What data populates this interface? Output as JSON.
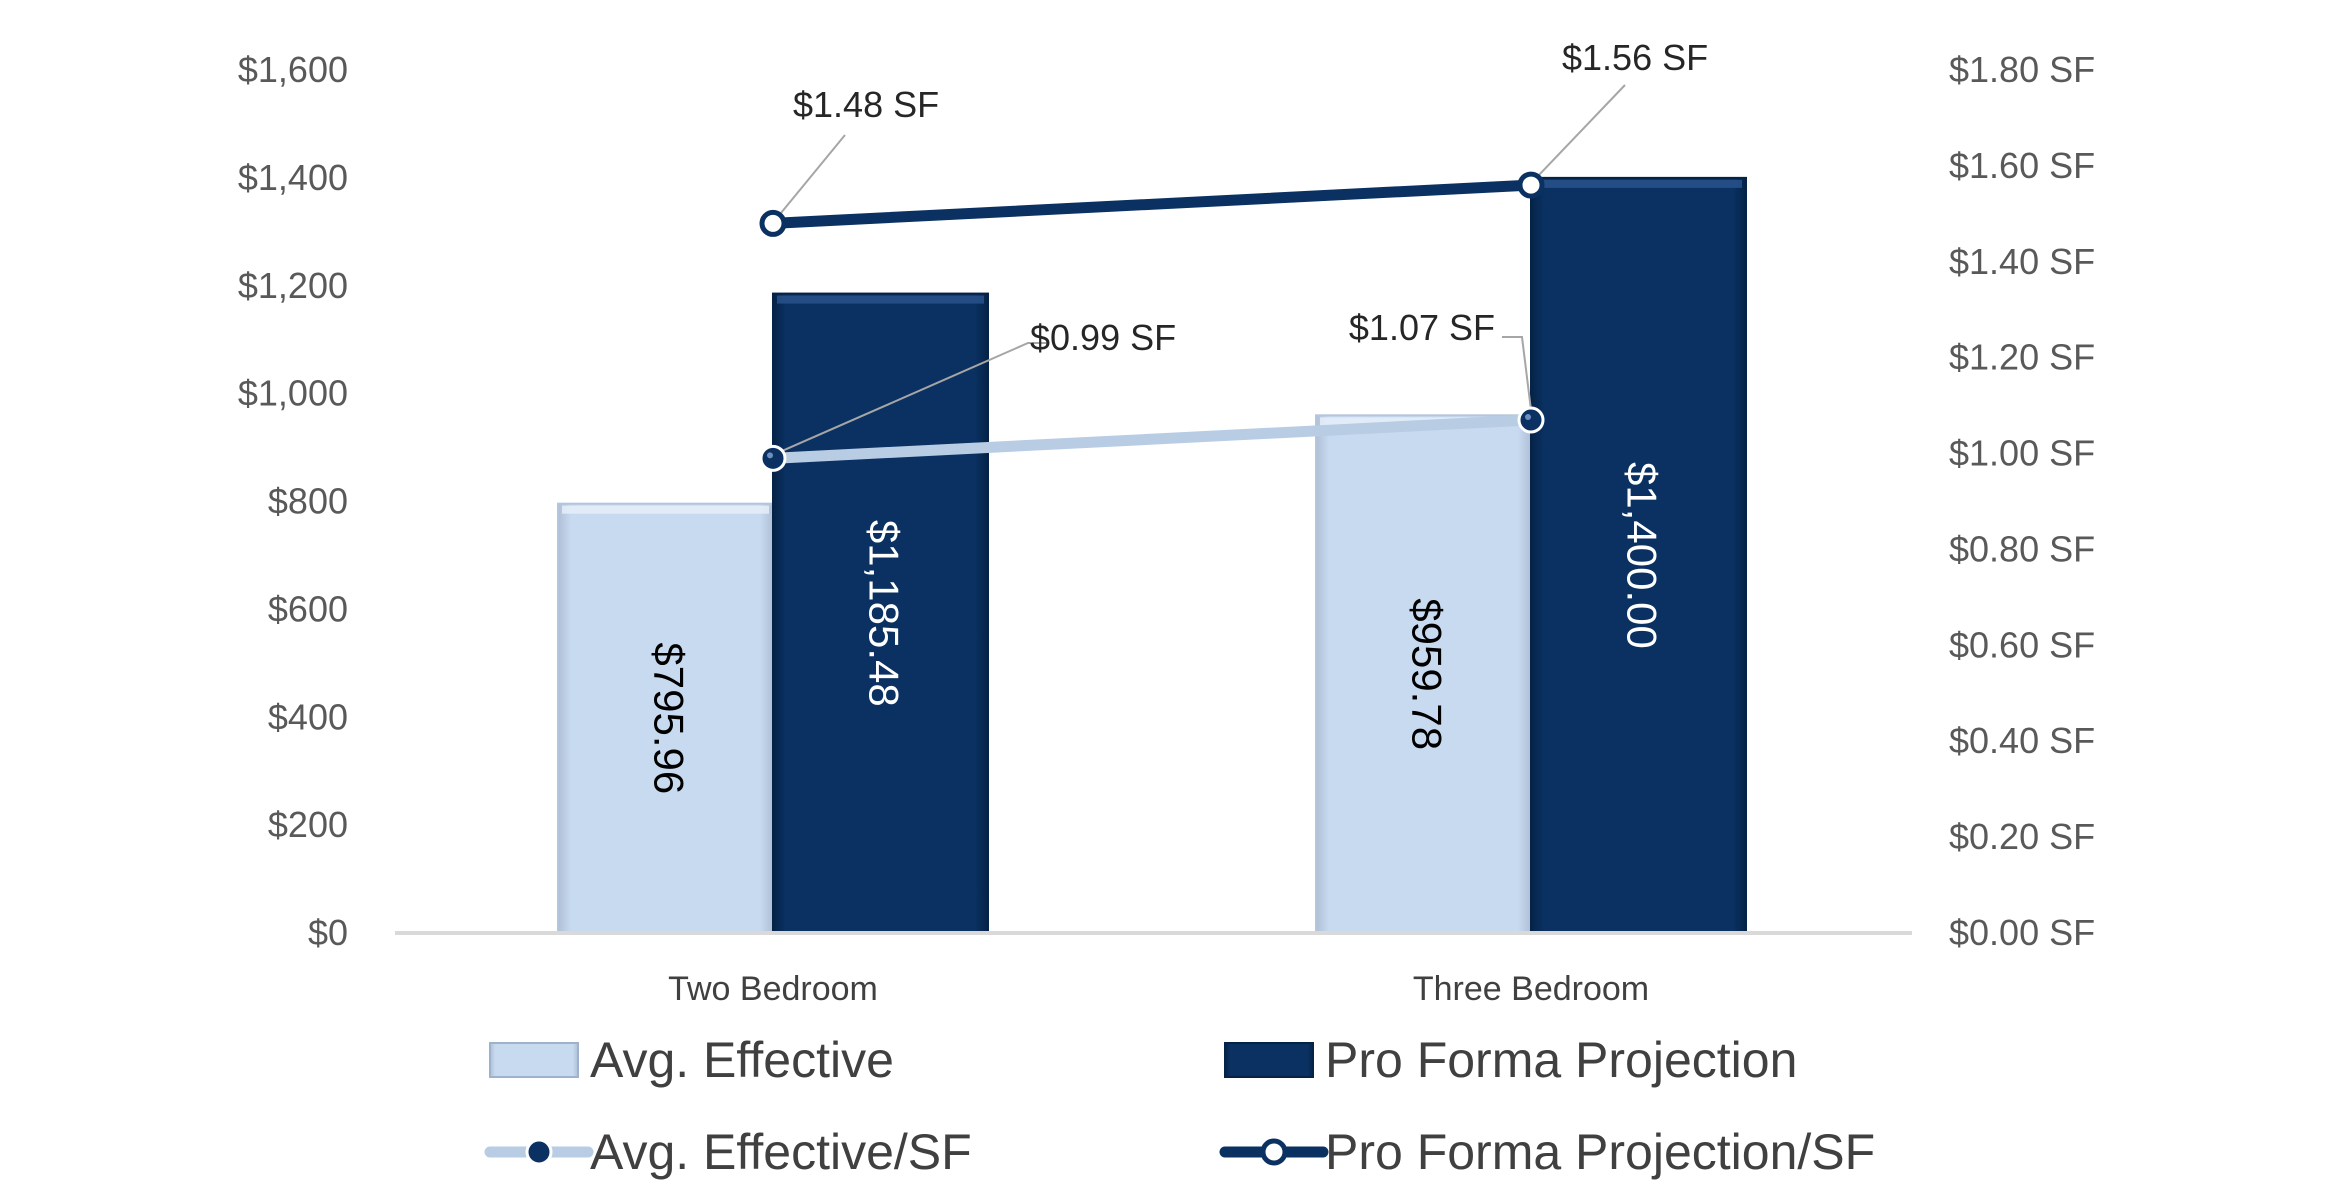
{
  "chart_data": {
    "type": "bar",
    "categories": [
      "Two Bedroom",
      "Three Bedroom"
    ],
    "series": [
      {
        "name": "Avg. Effective",
        "kind": "bar",
        "axis": "left",
        "color": "#c5d9f1",
        "values": [
          795.96,
          959.78
        ],
        "labels": [
          "$795.96",
          "$959.78"
        ]
      },
      {
        "name": "Pro Forma Projection",
        "kind": "bar",
        "axis": "left",
        "color": "#0a3162",
        "values": [
          1185.48,
          1400.0
        ],
        "labels": [
          "$1,185.48",
          "$1,400.00"
        ]
      },
      {
        "name": "Avg. Effective/SF",
        "kind": "line",
        "axis": "right",
        "color": "#b8cce4",
        "values": [
          0.99,
          1.07
        ],
        "labels": [
          "$0.99 SF",
          "$1.07 SF"
        ]
      },
      {
        "name": "Pro Forma Projection/SF",
        "kind": "line",
        "axis": "right",
        "color": "#0a3162",
        "values": [
          1.48,
          1.56
        ],
        "labels": [
          "$1.48 SF",
          "$1.56 SF"
        ]
      }
    ],
    "y_left": {
      "range": [
        0,
        1600
      ],
      "ticks": [
        "$0",
        "$200",
        "$400",
        "$600",
        "$800",
        "$1,000",
        "$1,200",
        "$1,400",
        "$1,600"
      ]
    },
    "y_right": {
      "range": [
        0,
        1.8
      ],
      "ticks": [
        "$0.00 SF",
        "$0.20 SF",
        "$0.40 SF",
        "$0.60 SF",
        "$0.80 SF",
        "$1.00 SF",
        "$1.20 SF",
        "$1.40 SF",
        "$1.60 SF",
        "$1.80 SF"
      ]
    },
    "grid": false,
    "legend_position": "bottom",
    "title": "",
    "xlabel": "",
    "ylabel": ""
  }
}
